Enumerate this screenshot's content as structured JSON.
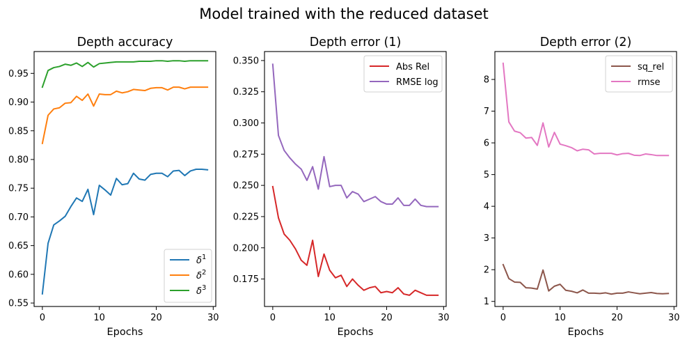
{
  "figure": {
    "suptitle": "Model trained with the reduced dataset"
  },
  "chart_data": [
    {
      "type": "line",
      "title": "Depth accuracy",
      "xlabel": "Epochs",
      "ylabel": "",
      "xlim": [
        -1.45,
        30.45
      ],
      "ylim": [
        0.544,
        0.988
      ],
      "xticks": [
        0,
        10,
        20,
        30
      ],
      "xtick_labels": [
        "0",
        "10",
        "20",
        "30"
      ],
      "yticks": [
        0.55,
        0.6,
        0.65,
        0.7,
        0.75,
        0.8,
        0.85,
        0.9,
        0.95
      ],
      "ytick_labels": [
        "0.55",
        "0.60",
        "0.65",
        "0.70",
        "0.75",
        "0.80",
        "0.85",
        "0.90",
        "0.95"
      ],
      "grid": false,
      "legend_position": "lower-right",
      "x": [
        0,
        1,
        2,
        3,
        4,
        5,
        6,
        7,
        8,
        9,
        10,
        11,
        12,
        13,
        14,
        15,
        16,
        17,
        18,
        19,
        20,
        21,
        22,
        23,
        24,
        25,
        26,
        27,
        28,
        29
      ],
      "series": [
        {
          "name": "δ¹",
          "base": "δ",
          "sup": "1",
          "color": "#1f77b4",
          "values": [
            0.566,
            0.654,
            0.686,
            0.693,
            0.701,
            0.718,
            0.733,
            0.727,
            0.748,
            0.704,
            0.755,
            0.747,
            0.738,
            0.767,
            0.756,
            0.758,
            0.776,
            0.766,
            0.764,
            0.774,
            0.776,
            0.776,
            0.77,
            0.78,
            0.781,
            0.772,
            0.78,
            0.783,
            0.783,
            0.782
          ]
        },
        {
          "name": "δ²",
          "base": "δ",
          "sup": "2",
          "color": "#ff7f0e",
          "values": [
            0.828,
            0.877,
            0.888,
            0.89,
            0.898,
            0.899,
            0.91,
            0.903,
            0.914,
            0.893,
            0.914,
            0.913,
            0.913,
            0.919,
            0.916,
            0.918,
            0.922,
            0.921,
            0.92,
            0.924,
            0.925,
            0.925,
            0.921,
            0.926,
            0.926,
            0.923,
            0.926,
            0.926,
            0.926,
            0.926
          ]
        },
        {
          "name": "δ³",
          "base": "δ",
          "sup": "3",
          "color": "#2ca02c",
          "values": [
            0.926,
            0.955,
            0.96,
            0.962,
            0.966,
            0.964,
            0.968,
            0.962,
            0.969,
            0.961,
            0.967,
            0.968,
            0.969,
            0.97,
            0.97,
            0.97,
            0.97,
            0.971,
            0.971,
            0.971,
            0.972,
            0.972,
            0.971,
            0.972,
            0.972,
            0.971,
            0.972,
            0.972,
            0.972,
            0.972
          ]
        }
      ]
    },
    {
      "type": "line",
      "title": "Depth error (1)",
      "xlabel": "Epochs",
      "ylabel": "",
      "xlim": [
        -1.45,
        30.45
      ],
      "ylim": [
        0.153,
        0.3572
      ],
      "xticks": [
        0,
        10,
        20,
        30
      ],
      "xtick_labels": [
        "0",
        "10",
        "20",
        "30"
      ],
      "yticks": [
        0.175,
        0.2,
        0.225,
        0.25,
        0.275,
        0.3,
        0.325,
        0.35
      ],
      "ytick_labels": [
        "0.175",
        "0.200",
        "0.225",
        "0.250",
        "0.275",
        "0.300",
        "0.325",
        "0.350"
      ],
      "grid": false,
      "legend_position": "upper-right",
      "x": [
        0,
        1,
        2,
        3,
        4,
        5,
        6,
        7,
        8,
        9,
        10,
        11,
        12,
        13,
        14,
        15,
        16,
        17,
        18,
        19,
        20,
        21,
        22,
        23,
        24,
        25,
        26,
        27,
        28,
        29
      ],
      "series": [
        {
          "name": "Abs Rel",
          "color": "#d62728",
          "values": [
            0.249,
            0.224,
            0.211,
            0.206,
            0.199,
            0.19,
            0.186,
            0.206,
            0.177,
            0.195,
            0.182,
            0.176,
            0.178,
            0.169,
            0.175,
            0.17,
            0.166,
            0.168,
            0.169,
            0.164,
            0.165,
            0.164,
            0.168,
            0.163,
            0.162,
            0.166,
            0.164,
            0.162,
            0.162,
            0.162
          ]
        },
        {
          "name": "RMSE log",
          "color": "#9467bd",
          "values": [
            0.347,
            0.29,
            0.278,
            0.272,
            0.267,
            0.263,
            0.254,
            0.265,
            0.247,
            0.273,
            0.249,
            0.25,
            0.25,
            0.24,
            0.245,
            0.243,
            0.237,
            0.239,
            0.241,
            0.237,
            0.235,
            0.235,
            0.24,
            0.234,
            0.234,
            0.239,
            0.234,
            0.233,
            0.233,
            0.233
          ]
        }
      ]
    },
    {
      "type": "line",
      "title": "Depth error (2)",
      "xlabel": "Epochs",
      "ylabel": "",
      "xlim": [
        -1.45,
        30.45
      ],
      "ylim": [
        0.84,
        8.88
      ],
      "xticks": [
        0,
        10,
        20,
        30
      ],
      "xtick_labels": [
        "0",
        "10",
        "20",
        "30"
      ],
      "yticks": [
        1,
        2,
        3,
        4,
        5,
        6,
        7,
        8
      ],
      "ytick_labels": [
        "1",
        "2",
        "3",
        "4",
        "5",
        "6",
        "7",
        "8"
      ],
      "grid": false,
      "legend_position": "upper-right",
      "x": [
        0,
        1,
        2,
        3,
        4,
        5,
        6,
        7,
        8,
        9,
        10,
        11,
        12,
        13,
        14,
        15,
        16,
        17,
        18,
        19,
        20,
        21,
        22,
        23,
        24,
        25,
        26,
        27,
        28,
        29
      ],
      "series": [
        {
          "name": "sq_rel",
          "color": "#8c564b",
          "values": [
            2.16,
            1.72,
            1.61,
            1.6,
            1.43,
            1.42,
            1.39,
            1.99,
            1.33,
            1.48,
            1.54,
            1.35,
            1.32,
            1.27,
            1.36,
            1.26,
            1.26,
            1.25,
            1.27,
            1.23,
            1.26,
            1.26,
            1.3,
            1.27,
            1.24,
            1.26,
            1.28,
            1.25,
            1.24,
            1.25
          ]
        },
        {
          "name": "rmse",
          "color": "#e377c2",
          "values": [
            8.51,
            6.66,
            6.37,
            6.32,
            6.15,
            6.17,
            5.92,
            6.63,
            5.87,
            6.33,
            5.96,
            5.91,
            5.85,
            5.75,
            5.8,
            5.78,
            5.65,
            5.67,
            5.67,
            5.67,
            5.62,
            5.66,
            5.67,
            5.61,
            5.6,
            5.65,
            5.63,
            5.6,
            5.6,
            5.6
          ]
        }
      ]
    }
  ]
}
